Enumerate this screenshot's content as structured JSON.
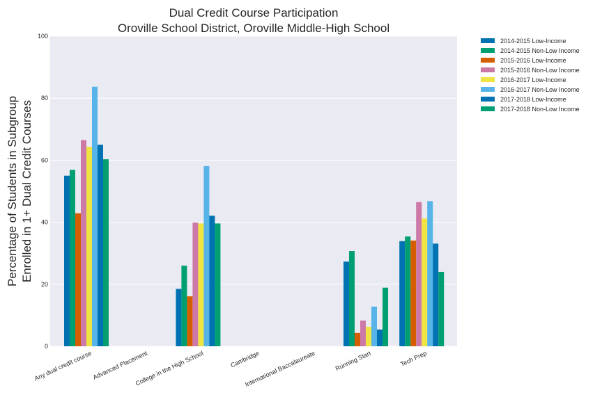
{
  "chart_data": {
    "type": "bar",
    "title": "Dual Credit Course Participation",
    "subtitle": "Oroville School District, Oroville Middle-High School",
    "ylabel_line1": "Percentage of Students in Subgroup",
    "ylabel_line2": "Enrolled in 1+ Dual Credit Courses",
    "xlabel": "",
    "ylim": [
      0,
      100
    ],
    "yticks": [
      "0",
      "20",
      "40",
      "60",
      "80",
      "100"
    ],
    "grid": true,
    "legend_position": "outside-top-right",
    "categories": [
      "Any dual credit course",
      "Advanced Placement",
      "College in the High School",
      "Cambridge",
      "International Baccalaureate",
      "Running Start",
      "Tech Prep"
    ],
    "series": [
      {
        "name": "2014-2015 Low-Income",
        "color": "#0072B2",
        "values": [
          55.0,
          null,
          18.5,
          null,
          null,
          27.3,
          33.9
        ]
      },
      {
        "name": "2014-2015 Non-Low Income",
        "color": "#009E73",
        "values": [
          56.9,
          null,
          26.0,
          null,
          null,
          30.7,
          35.4
        ]
      },
      {
        "name": "2015-2016 Low-Income",
        "color": "#D55E00",
        "values": [
          42.9,
          null,
          16.1,
          null,
          null,
          4.3,
          34.1
        ]
      },
      {
        "name": "2015-2016 Non-Low Income",
        "color": "#CC79A7",
        "values": [
          66.5,
          null,
          39.9,
          null,
          null,
          8.3,
          46.5
        ]
      },
      {
        "name": "2016-2017 Low-Income",
        "color": "#F0E442",
        "values": [
          64.3,
          null,
          39.6,
          null,
          null,
          6.3,
          41.2
        ]
      },
      {
        "name": "2016-2017 Non-Low Income",
        "color": "#56B4E9",
        "values": [
          83.7,
          null,
          58.1,
          null,
          null,
          12.8,
          46.8
        ]
      },
      {
        "name": "2017-2018 Low-Income",
        "color": "#0072B2",
        "values": [
          65.0,
          null,
          42.1,
          null,
          null,
          5.4,
          33.1
        ]
      },
      {
        "name": "2017-2018 Non-Low Income",
        "color": "#009E73",
        "values": [
          60.3,
          null,
          39.6,
          null,
          null,
          18.9,
          24.0
        ]
      }
    ]
  }
}
